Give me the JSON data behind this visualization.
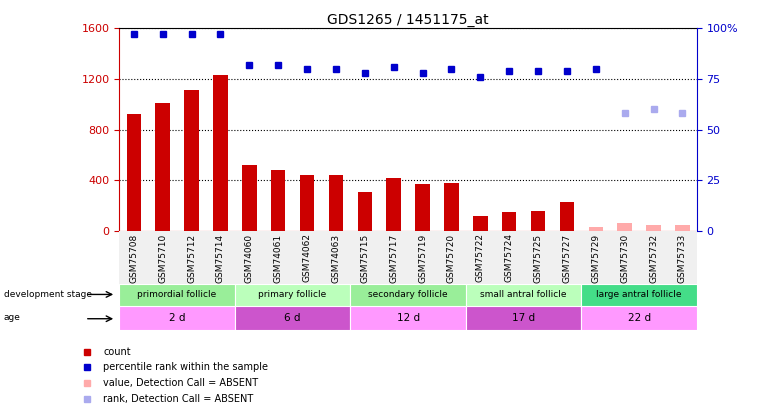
{
  "title": "GDS1265 / 1451175_at",
  "samples": [
    "GSM75708",
    "GSM75710",
    "GSM75712",
    "GSM75714",
    "GSM74060",
    "GSM74061",
    "GSM74062",
    "GSM74063",
    "GSM75715",
    "GSM75717",
    "GSM75719",
    "GSM75720",
    "GSM75722",
    "GSM75724",
    "GSM75725",
    "GSM75727",
    "GSM75729",
    "GSM75730",
    "GSM75732",
    "GSM75733"
  ],
  "count_values": [
    920,
    1010,
    1110,
    1230,
    520,
    480,
    440,
    440,
    310,
    420,
    370,
    380,
    120,
    145,
    155,
    230,
    null,
    null,
    null,
    null
  ],
  "count_absent": [
    null,
    null,
    null,
    null,
    null,
    null,
    null,
    null,
    null,
    null,
    null,
    null,
    null,
    null,
    null,
    null,
    30,
    60,
    50,
    45
  ],
  "percentile_present": [
    97,
    97,
    97,
    97,
    82,
    82,
    80,
    80,
    78,
    81,
    78,
    80,
    76,
    79,
    79,
    79,
    80,
    null,
    null,
    null
  ],
  "percentile_absent": [
    null,
    null,
    null,
    null,
    null,
    null,
    null,
    null,
    null,
    null,
    null,
    null,
    null,
    null,
    null,
    null,
    null,
    58,
    60,
    58
  ],
  "groups": [
    {
      "label": "primordial follicle",
      "start": 0,
      "end": 4,
      "color": "#99ee99"
    },
    {
      "label": "primary follicle",
      "start": 4,
      "end": 8,
      "color": "#bbffbb"
    },
    {
      "label": "secondary follicle",
      "start": 8,
      "end": 12,
      "color": "#99ee99"
    },
    {
      "label": "small antral follicle",
      "start": 12,
      "end": 16,
      "color": "#bbffbb"
    },
    {
      "label": "large antral follicle",
      "start": 16,
      "end": 20,
      "color": "#44dd88"
    }
  ],
  "age_groups": [
    {
      "label": "2 d",
      "start": 0,
      "end": 4,
      "color": "#ff99ff"
    },
    {
      "label": "6 d",
      "start": 4,
      "end": 8,
      "color": "#cc55cc"
    },
    {
      "label": "12 d",
      "start": 8,
      "end": 12,
      "color": "#ff99ff"
    },
    {
      "label": "17 d",
      "start": 12,
      "end": 16,
      "color": "#cc55cc"
    },
    {
      "label": "22 d",
      "start": 16,
      "end": 20,
      "color": "#ff99ff"
    }
  ],
  "ylim_left": [
    0,
    1600
  ],
  "ylim_right": [
    0,
    100
  ],
  "yticks_left": [
    0,
    400,
    800,
    1200,
    1600
  ],
  "yticks_right": [
    0,
    25,
    50,
    75,
    100
  ],
  "bar_color": "#cc0000",
  "bar_absent_color": "#ffaaaa",
  "dot_color": "#0000cc",
  "dot_absent_color": "#aaaaee",
  "left_axis_color": "#cc0000",
  "right_axis_color": "#0000cc",
  "bg_color": "#f0f0f0"
}
